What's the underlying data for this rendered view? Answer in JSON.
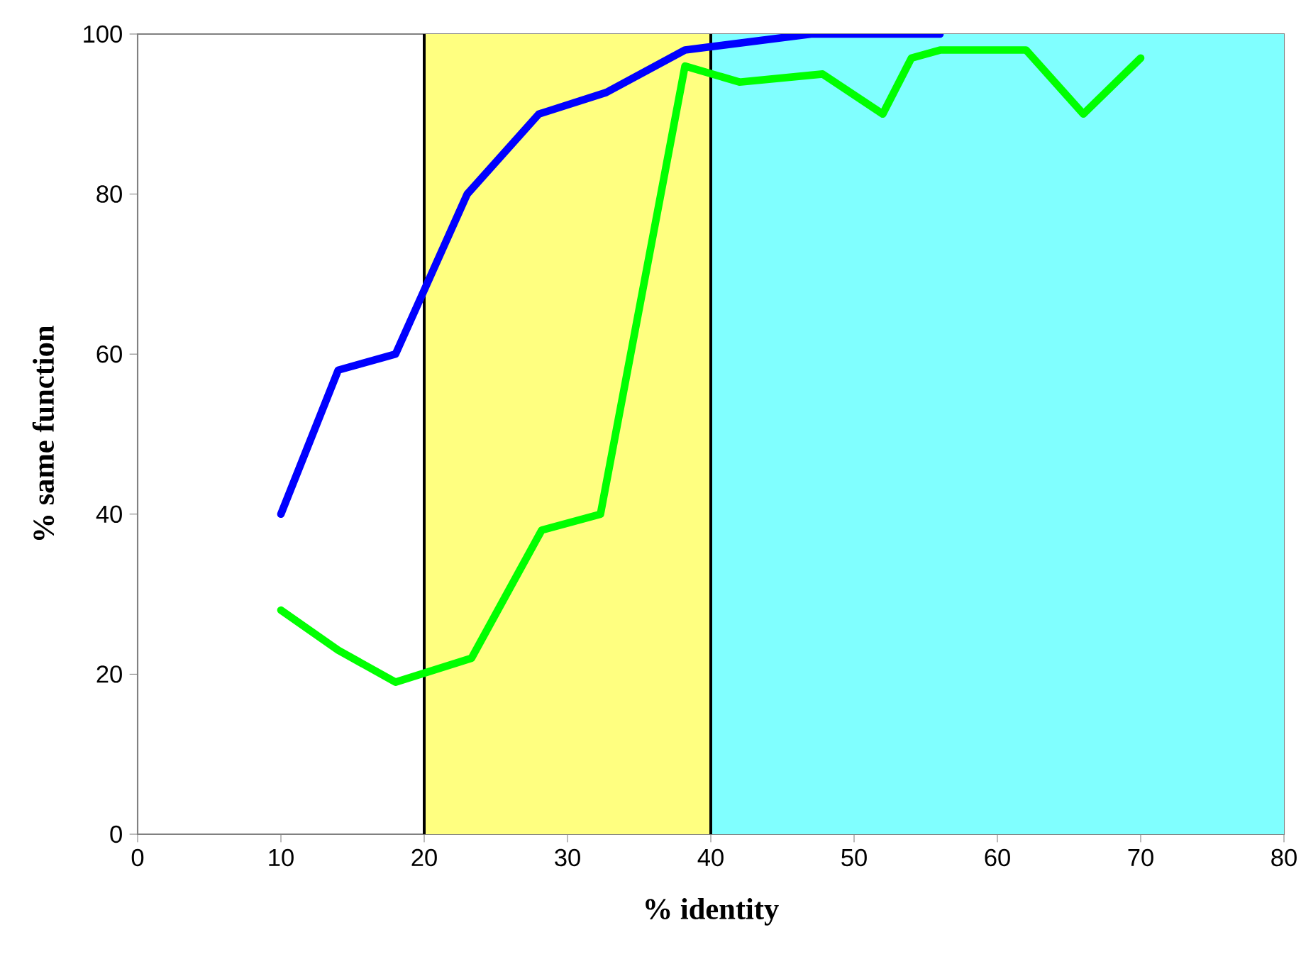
{
  "chart_data": {
    "type": "line",
    "xlabel": "% identity",
    "ylabel": "% same function",
    "xlim": [
      0,
      80
    ],
    "xticks": [
      0,
      10,
      20,
      30,
      40,
      50,
      60,
      70,
      80
    ],
    "ylim": [
      0,
      100
    ],
    "yticks": [
      0,
      20,
      40,
      60,
      80,
      100
    ],
    "grid": false,
    "marker": "none",
    "line_style": "solid",
    "bands": [
      {
        "axis": "x",
        "from": 20,
        "to": 40,
        "color": "#ffff80"
      },
      {
        "axis": "x",
        "from": 40,
        "to": 80,
        "color": "#80ffff"
      }
    ],
    "ref_lines": [
      {
        "axis": "x",
        "value": 20,
        "color": "#000000"
      },
      {
        "axis": "x",
        "value": 40,
        "color": "#000000"
      }
    ],
    "series": [
      {
        "color": "#0000ff",
        "x": [
          10,
          14,
          18,
          23,
          28,
          32.7,
          38.2,
          47,
          56
        ],
        "values": [
          40,
          58,
          60,
          80,
          90,
          92.7,
          98,
          100,
          100
        ]
      },
      {
        "color": "#00ff00",
        "x": [
          10,
          14,
          18,
          23.3,
          28.2,
          32.3,
          38.2,
          42,
          47.8,
          52,
          54,
          56,
          62,
          66,
          70
        ],
        "values": [
          28,
          23,
          19,
          22,
          38,
          40,
          96,
          94,
          95,
          90,
          97,
          98,
          98,
          90,
          97
        ]
      }
    ]
  }
}
